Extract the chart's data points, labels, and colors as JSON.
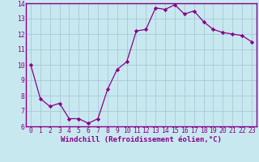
{
  "x": [
    0,
    1,
    2,
    3,
    4,
    5,
    6,
    7,
    8,
    9,
    10,
    11,
    12,
    13,
    14,
    15,
    16,
    17,
    18,
    19,
    20,
    21,
    22,
    23
  ],
  "y": [
    10.0,
    7.8,
    7.3,
    7.5,
    6.5,
    6.5,
    6.2,
    6.5,
    8.4,
    9.7,
    10.2,
    12.2,
    12.3,
    13.7,
    13.6,
    13.9,
    13.3,
    13.5,
    12.8,
    12.3,
    12.1,
    12.0,
    11.9,
    11.5
  ],
  "line_color": "#880088",
  "marker": "D",
  "marker_size": 2.2,
  "bg_color": "#c8e8f0",
  "grid_color": "#a8c8d8",
  "xlabel": "Windchill (Refroidissement éolien,°C)",
  "ylim": [
    6,
    14
  ],
  "xlim": [
    -0.5,
    23.5
  ],
  "yticks": [
    6,
    7,
    8,
    9,
    10,
    11,
    12,
    13,
    14
  ],
  "xticks": [
    0,
    1,
    2,
    3,
    4,
    5,
    6,
    7,
    8,
    9,
    10,
    11,
    12,
    13,
    14,
    15,
    16,
    17,
    18,
    19,
    20,
    21,
    22,
    23
  ],
  "tick_color": "#880088",
  "xlabel_color": "#880088",
  "tick_fontsize": 5.8,
  "xlabel_fontsize": 6.5,
  "spine_color": "#880088",
  "linewidth": 0.9
}
